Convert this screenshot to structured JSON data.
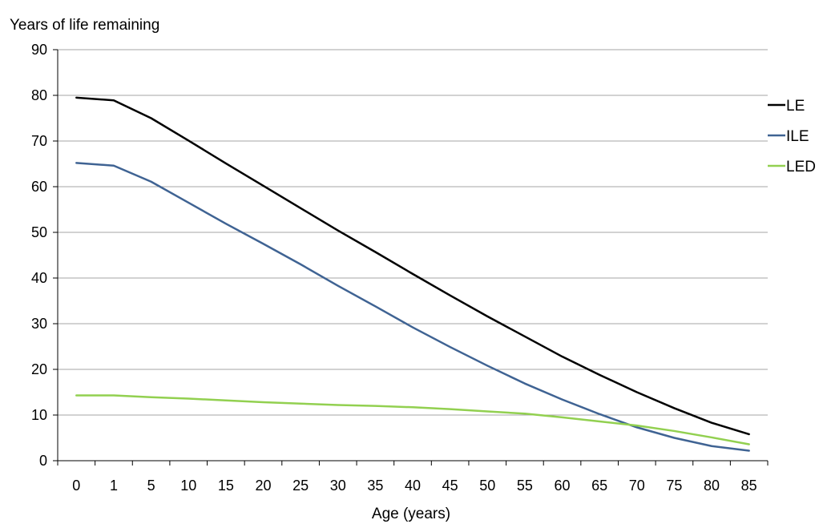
{
  "chart_data": {
    "type": "line",
    "ylabel": "Years of life remaining",
    "xlabel": "Age (years)",
    "categories": [
      "0",
      "1",
      "5",
      "10",
      "15",
      "20",
      "25",
      "30",
      "35",
      "40",
      "45",
      "50",
      "55",
      "60",
      "65",
      "70",
      "75",
      "80",
      "85"
    ],
    "ylim": [
      0,
      90
    ],
    "yticks": [
      0,
      10,
      20,
      30,
      40,
      50,
      60,
      70,
      80,
      90
    ],
    "grid": true,
    "legend_position": "right",
    "series": [
      {
        "name": "LE",
        "color": "#000000",
        "values": [
          79.5,
          78.9,
          75.0,
          70.1,
          65.1,
          60.2,
          55.3,
          50.4,
          45.7,
          40.9,
          36.2,
          31.6,
          27.2,
          22.8,
          18.8,
          15.0,
          11.5,
          8.3,
          5.8
        ]
      },
      {
        "name": "ILE",
        "color": "#3f6393",
        "values": [
          65.2,
          64.6,
          61.1,
          56.5,
          51.9,
          47.5,
          43.0,
          38.3,
          33.8,
          29.2,
          24.9,
          20.8,
          16.9,
          13.4,
          10.2,
          7.3,
          5.0,
          3.2,
          2.2
        ]
      },
      {
        "name": "LED",
        "color": "#92d050",
        "values": [
          14.3,
          14.3,
          13.9,
          13.6,
          13.2,
          12.8,
          12.5,
          12.2,
          12.0,
          11.7,
          11.3,
          10.8,
          10.3,
          9.5,
          8.6,
          7.7,
          6.5,
          5.1,
          3.6
        ]
      }
    ]
  }
}
